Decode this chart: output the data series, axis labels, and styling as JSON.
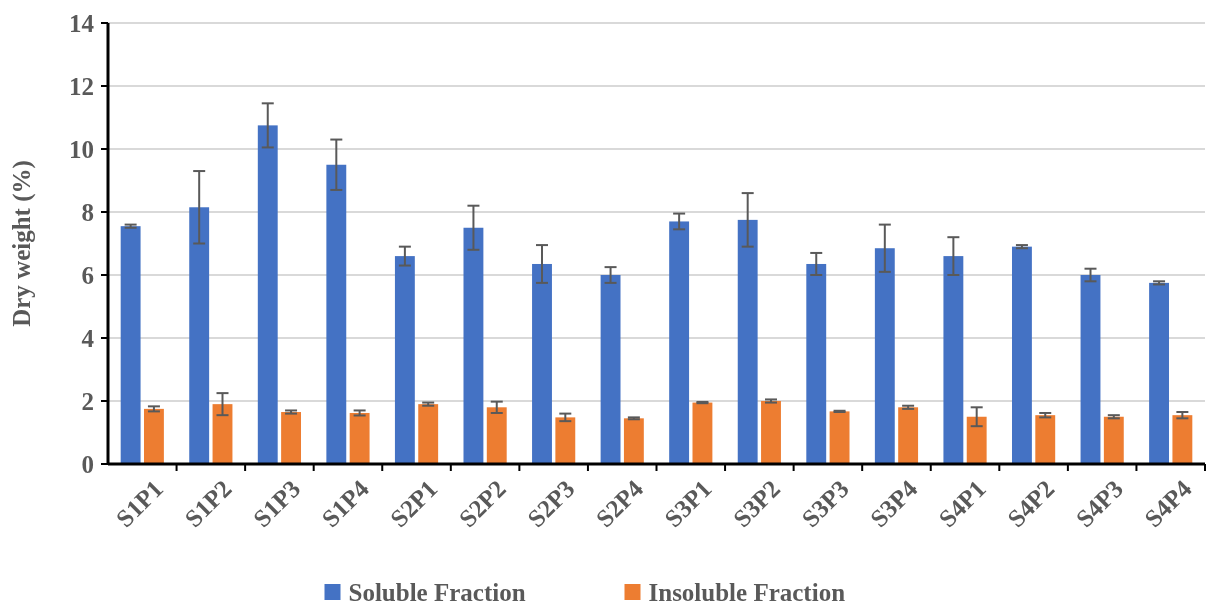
{
  "chart_data": {
    "type": "bar",
    "ylabel": "Dry weight (%)",
    "categories": [
      "S1P1",
      "S1P2",
      "S1P3",
      "S1P4",
      "S2P1",
      "S2P2",
      "S2P3",
      "S2P4",
      "S3P1",
      "S3P2",
      "S3P3",
      "S3P4",
      "S4P1",
      "S4P2",
      "S4P3",
      "S4P4"
    ],
    "series": [
      {
        "name": "Soluble Fraction",
        "color": "#4472c4",
        "values": [
          7.55,
          8.15,
          10.75,
          9.5,
          6.6,
          7.5,
          6.35,
          6.0,
          7.7,
          7.75,
          6.35,
          6.85,
          6.6,
          6.9,
          6.0,
          5.75
        ],
        "errors": [
          0.05,
          1.15,
          0.7,
          0.8,
          0.3,
          0.7,
          0.6,
          0.25,
          0.25,
          0.85,
          0.35,
          0.75,
          0.6,
          0.05,
          0.2,
          0.05
        ]
      },
      {
        "name": "Insoluble Fraction",
        "color": "#ed7d31",
        "values": [
          1.75,
          1.9,
          1.65,
          1.62,
          1.9,
          1.8,
          1.48,
          1.45,
          1.95,
          2.0,
          1.67,
          1.8,
          1.5,
          1.55,
          1.5,
          1.55
        ],
        "errors": [
          0.08,
          0.35,
          0.05,
          0.08,
          0.05,
          0.18,
          0.12,
          0.03,
          0.02,
          0.05,
          0.02,
          0.05,
          0.3,
          0.07,
          0.05,
          0.1
        ]
      }
    ],
    "ylim": [
      0,
      14
    ],
    "yticks": [
      0,
      2,
      4,
      6,
      8,
      10,
      12,
      14
    ],
    "grid": "y",
    "legend": "bottom"
  }
}
